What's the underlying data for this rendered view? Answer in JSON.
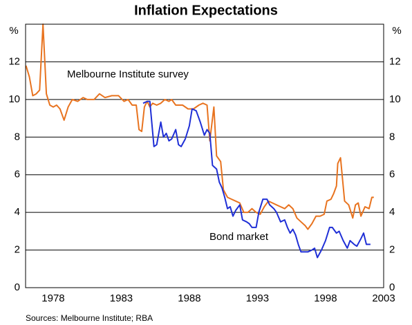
{
  "chart_data": {
    "type": "line",
    "title": "Inflation Expectations",
    "y_unit": "%",
    "source": "Sources: Melbourne Institute; RBA",
    "xlim": [
      1976.47,
      2002.77
    ],
    "ylim": [
      0,
      14
    ],
    "xticks": [
      {
        "value": 1978.5,
        "label": "1978"
      },
      {
        "value": 1983.5,
        "label": "1983"
      },
      {
        "value": 1988.5,
        "label": "1988"
      },
      {
        "value": 1993.5,
        "label": "1993"
      },
      {
        "value": 1998.5,
        "label": "1998"
      },
      {
        "value": 2003.5,
        "label": "2003"
      }
    ],
    "yticks": [
      0,
      2,
      4,
      6,
      8,
      10,
      12
    ],
    "grid": true,
    "series": [
      {
        "name": "Melbourne Institute survey",
        "color": "#e8731f",
        "x": [
          1976.5,
          1976.75,
          1977.0,
          1977.25,
          1977.5,
          1977.75,
          1978.0,
          1978.25,
          1978.5,
          1978.75,
          1979.0,
          1979.3,
          1979.6,
          1979.9,
          1980.3,
          1980.7,
          1981.0,
          1981.5,
          1981.9,
          1982.3,
          1982.8,
          1983.3,
          1983.7,
          1984.0,
          1984.3,
          1984.6,
          1984.8,
          1985.0,
          1985.2,
          1985.4,
          1985.6,
          1985.8,
          1986.1,
          1986.4,
          1986.7,
          1987.0,
          1987.2,
          1987.5,
          1988.0,
          1988.4,
          1988.8,
          1989.2,
          1989.5,
          1989.8,
          1990.0,
          1990.3,
          1990.5,
          1990.8,
          1991.0,
          1991.3,
          1991.6,
          1991.9,
          1992.2,
          1992.5,
          1992.8,
          1993.1,
          1993.4,
          1993.7,
          1994.0,
          1994.3,
          1994.6,
          1994.9,
          1995.2,
          1995.5,
          1995.8,
          1996.1,
          1996.4,
          1996.7,
          1997.0,
          1997.2,
          1997.5,
          1997.8,
          1998.1,
          1998.4,
          1998.6,
          1998.9,
          1999.1,
          1999.3,
          1999.4,
          1999.6,
          1999.9,
          2000.2,
          2000.5,
          2000.7,
          2000.9,
          2001.1,
          2001.4,
          2001.7,
          2001.9,
          2002.05
        ],
        "values": [
          11.8,
          11.2,
          10.2,
          10.3,
          10.5,
          14.0,
          10.3,
          9.7,
          9.6,
          9.7,
          9.5,
          8.9,
          9.6,
          10.0,
          9.9,
          10.1,
          10.0,
          10.0,
          10.3,
          10.1,
          10.2,
          10.2,
          9.9,
          10.0,
          9.7,
          9.7,
          8.4,
          8.3,
          9.6,
          9.9,
          9.6,
          9.8,
          9.7,
          9.8,
          10.0,
          9.9,
          10.0,
          9.7,
          9.7,
          9.5,
          9.5,
          9.7,
          9.8,
          9.7,
          7.8,
          9.6,
          7.0,
          6.7,
          5.2,
          4.8,
          4.7,
          4.6,
          4.5,
          4.0,
          4.0,
          4.2,
          4.0,
          3.9,
          4.3,
          4.6,
          4.5,
          4.4,
          4.3,
          4.2,
          4.4,
          4.2,
          3.7,
          3.5,
          3.3,
          3.1,
          3.4,
          3.8,
          3.8,
          3.9,
          4.6,
          4.7,
          5.0,
          5.4,
          6.6,
          6.9,
          4.6,
          4.4,
          3.7,
          4.4,
          4.5,
          3.8,
          4.3,
          4.2,
          4.8,
          4.8
        ]
      },
      {
        "name": "Bond market",
        "color": "#1f2fd6",
        "x": [
          1985.1,
          1985.4,
          1985.6,
          1985.9,
          1986.1,
          1986.4,
          1986.6,
          1986.8,
          1987.0,
          1987.2,
          1987.5,
          1987.7,
          1987.9,
          1988.2,
          1988.5,
          1988.7,
          1989.0,
          1989.3,
          1989.6,
          1989.8,
          1990.0,
          1990.2,
          1990.5,
          1990.7,
          1990.9,
          1991.1,
          1991.3,
          1991.5,
          1991.7,
          1991.9,
          1992.2,
          1992.4,
          1992.7,
          1992.9,
          1993.1,
          1993.4,
          1993.6,
          1993.9,
          1994.2,
          1994.4,
          1994.7,
          1994.9,
          1995.2,
          1995.5,
          1995.7,
          1995.9,
          1996.1,
          1996.3,
          1996.5,
          1996.7,
          1996.9,
          1997.2,
          1997.5,
          1997.7,
          1997.9,
          1998.2,
          1998.5,
          1998.8,
          1999.0,
          1999.3,
          1999.5,
          1999.8,
          2000.1,
          2000.3,
          2000.6,
          2000.8,
          2001.1,
          2001.3,
          2001.5,
          2001.8
        ],
        "values": [
          9.8,
          9.9,
          9.9,
          7.5,
          7.6,
          8.8,
          8.0,
          8.2,
          7.8,
          7.9,
          8.4,
          7.6,
          7.5,
          7.9,
          8.6,
          9.5,
          9.4,
          8.8,
          8.1,
          8.4,
          8.2,
          6.5,
          6.3,
          5.6,
          5.3,
          4.8,
          4.2,
          4.3,
          3.8,
          4.1,
          4.4,
          3.6,
          3.5,
          3.4,
          3.2,
          3.2,
          4.0,
          4.7,
          4.7,
          4.4,
          4.2,
          4.0,
          3.5,
          3.6,
          3.2,
          2.9,
          3.1,
          2.8,
          2.3,
          1.9,
          1.9,
          1.9,
          2.0,
          2.1,
          1.6,
          2.0,
          2.5,
          3.2,
          3.2,
          2.9,
          3.0,
          2.5,
          2.1,
          2.5,
          2.3,
          2.2,
          2.6,
          2.9,
          2.3,
          2.3
        ]
      }
    ]
  }
}
